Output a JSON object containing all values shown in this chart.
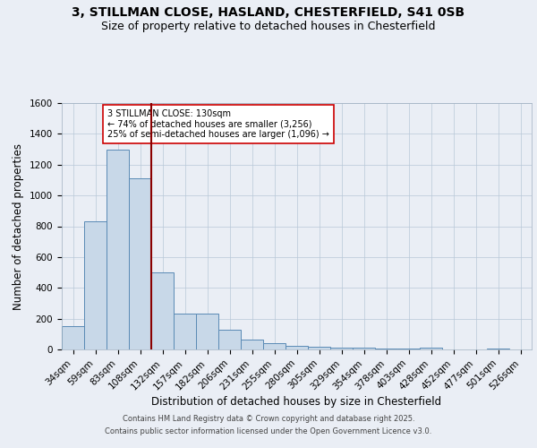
{
  "title1": "3, STILLMAN CLOSE, HASLAND, CHESTERFIELD, S41 0SB",
  "title2": "Size of property relative to detached houses in Chesterfield",
  "xlabel": "Distribution of detached houses by size in Chesterfield",
  "ylabel": "Number of detached properties",
  "categories": [
    "34sqm",
    "59sqm",
    "83sqm",
    "108sqm",
    "132sqm",
    "157sqm",
    "182sqm",
    "206sqm",
    "231sqm",
    "255sqm",
    "280sqm",
    "305sqm",
    "329sqm",
    "354sqm",
    "378sqm",
    "403sqm",
    "428sqm",
    "452sqm",
    "477sqm",
    "501sqm",
    "526sqm"
  ],
  "values": [
    150,
    830,
    1300,
    1110,
    500,
    230,
    230,
    130,
    65,
    40,
    25,
    15,
    10,
    10,
    5,
    5,
    10,
    0,
    0,
    5,
    0
  ],
  "bar_color": "#c8d8e8",
  "bar_edge_color": "#5a8ab5",
  "vline_color": "#8b0000",
  "annotation_text": "3 STILLMAN CLOSE: 130sqm\n← 74% of detached houses are smaller (3,256)\n25% of semi-detached houses are larger (1,096) →",
  "annotation_box_color": "#ffffff",
  "annotation_box_edge": "#cc0000",
  "ylim": [
    0,
    1600
  ],
  "yticks": [
    0,
    200,
    400,
    600,
    800,
    1000,
    1200,
    1400,
    1600
  ],
  "bg_color": "#eaeef5",
  "plot_bg_color": "#eaeef5",
  "footer1": "Contains HM Land Registry data © Crown copyright and database right 2025.",
  "footer2": "Contains public sector information licensed under the Open Government Licence v3.0.",
  "title_fontsize": 10,
  "subtitle_fontsize": 9,
  "axis_label_fontsize": 8.5,
  "tick_fontsize": 7.5,
  "footer_fontsize": 6.0
}
